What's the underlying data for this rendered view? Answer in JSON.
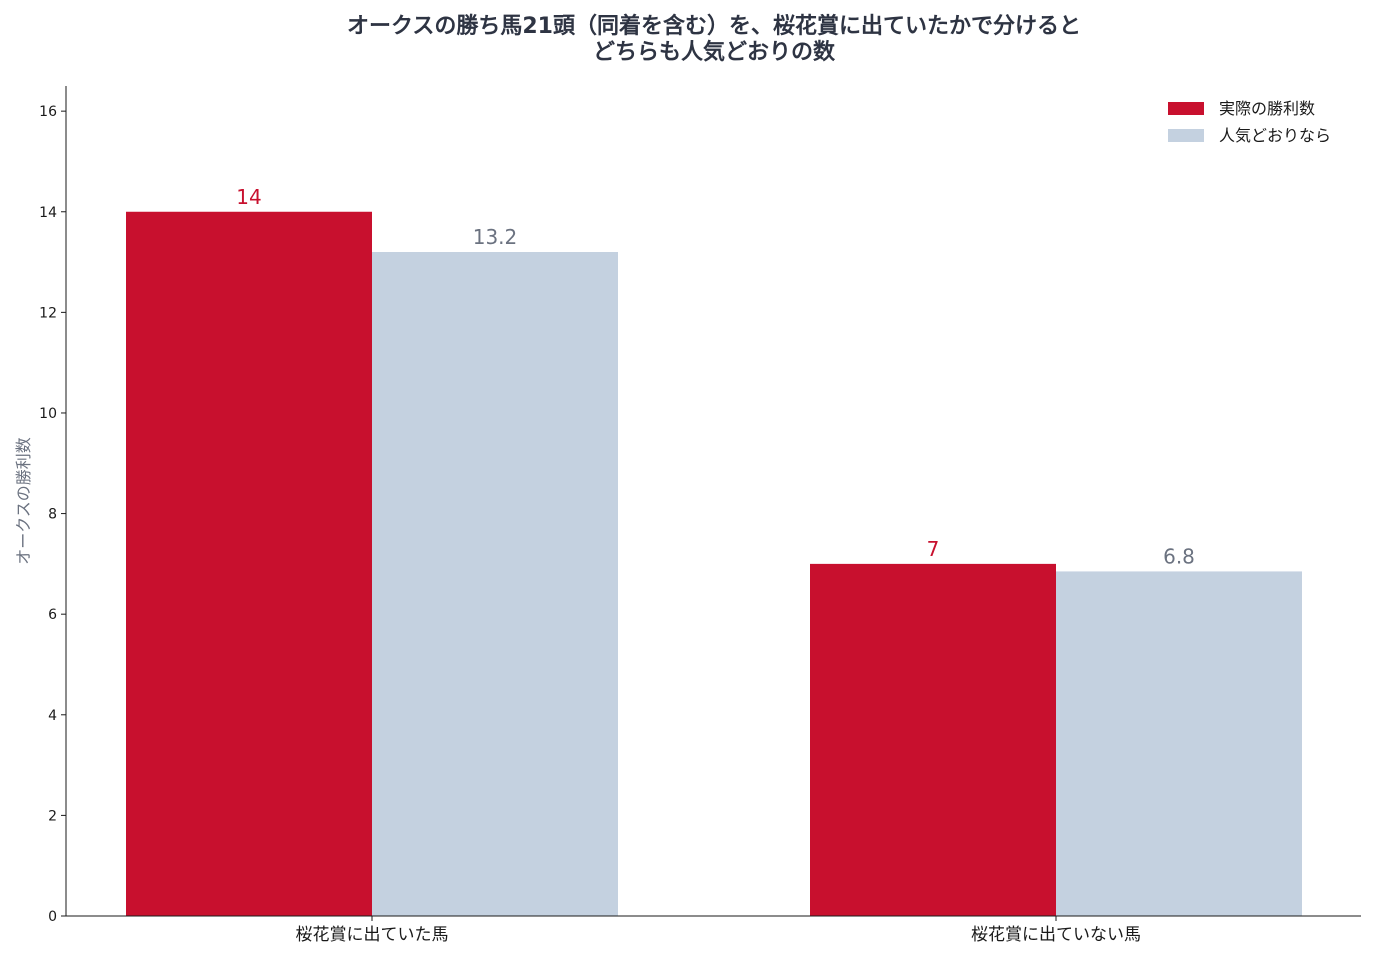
{
  "chart_data": {
    "type": "bar",
    "title_lines": [
      "オークスの勝ち馬21頭（同着を含む）を、桜花賞に出ていたかで分けると",
      "どちらも人気どおりの数"
    ],
    "xlabel": "",
    "ylabel": "オークスの勝利数",
    "categories": [
      "桜花賞に出ていた馬",
      "桜花賞に出ていない馬"
    ],
    "series": [
      {
        "name": "実際の勝利数",
        "values": [
          14,
          7
        ],
        "labels": [
          "14",
          "7"
        ],
        "color": "#c8102e",
        "label_color": "#c8102e"
      },
      {
        "name": "人気どおりなら",
        "values": [
          13.2,
          6.85
        ],
        "labels": [
          "13.2",
          "6.8"
        ],
        "color": "#c4d1e0",
        "label_color": "#6b7280"
      }
    ],
    "ylim": [
      0,
      16.5
    ],
    "yticks": [
      "0",
      "2",
      "4",
      "6",
      "8",
      "10",
      "12",
      "14",
      "16"
    ],
    "grid": false,
    "legend_position": "top-right"
  }
}
